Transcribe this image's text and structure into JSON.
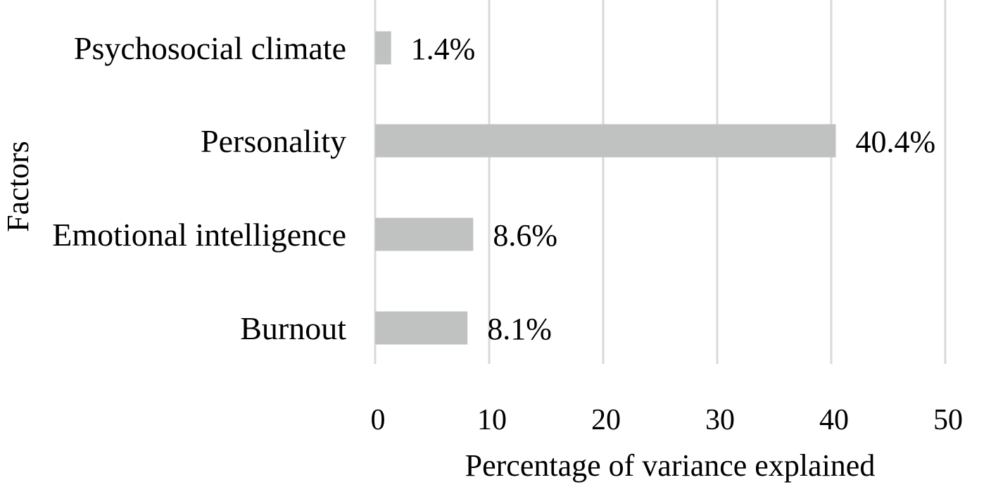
{
  "chart_data": {
    "type": "bar",
    "orientation": "horizontal",
    "categories": [
      "Psychosocial climate",
      "Personality",
      "Emotional intelligence",
      "Burnout"
    ],
    "values": [
      1.4,
      40.4,
      8.6,
      8.1
    ],
    "data_labels": [
      "1.4%",
      "40.4%",
      "8.6%",
      "8.1%"
    ],
    "xlabel": "Percentage of variance explained",
    "ylabel": "Factors",
    "xlim": [
      0,
      50
    ],
    "xticks": [
      0,
      10,
      20,
      30,
      40,
      50
    ],
    "grid": true,
    "bar_color": "#c0c2c2",
    "grid_color": "#d9d9d9"
  }
}
